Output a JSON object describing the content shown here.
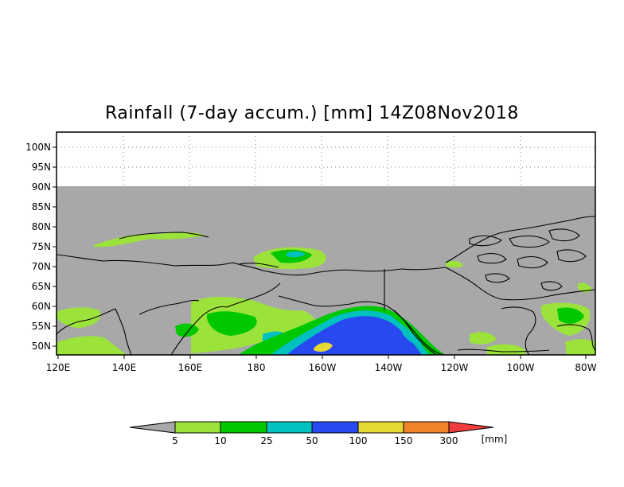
{
  "title": "Rainfall (7-day accum.) [mm] 14Z08Nov2018",
  "map": {
    "projection": "cylindrical",
    "lon_range": [
      "120E",
      "80W"
    ],
    "lat_range": [
      "48N",
      "103N"
    ],
    "no_data_region": "north of 90N",
    "lat_ticks": [
      "100N",
      "95N",
      "90N",
      "85N",
      "80N",
      "75N",
      "70N",
      "65N",
      "60N",
      "55N",
      "50N"
    ],
    "lon_ticks": [
      "120E",
      "140E",
      "160E",
      "180",
      "160W",
      "140W",
      "120W",
      "100W",
      "80W"
    ]
  },
  "colorbar": {
    "levels": [
      "5",
      "10",
      "25",
      "50",
      "100",
      "150",
      "300"
    ],
    "unit": "[mm]",
    "colors": [
      "#a8a8a8",
      "#9be33a",
      "#00c800",
      "#00c0c0",
      "#2848f0",
      "#e6d832",
      "#f08228",
      "#f03c3c"
    ]
  },
  "colors": {
    "land_sea_mask": "#a8a8a8",
    "coastline": "#000000",
    "frame": "#000000",
    "grid": "#888888"
  }
}
